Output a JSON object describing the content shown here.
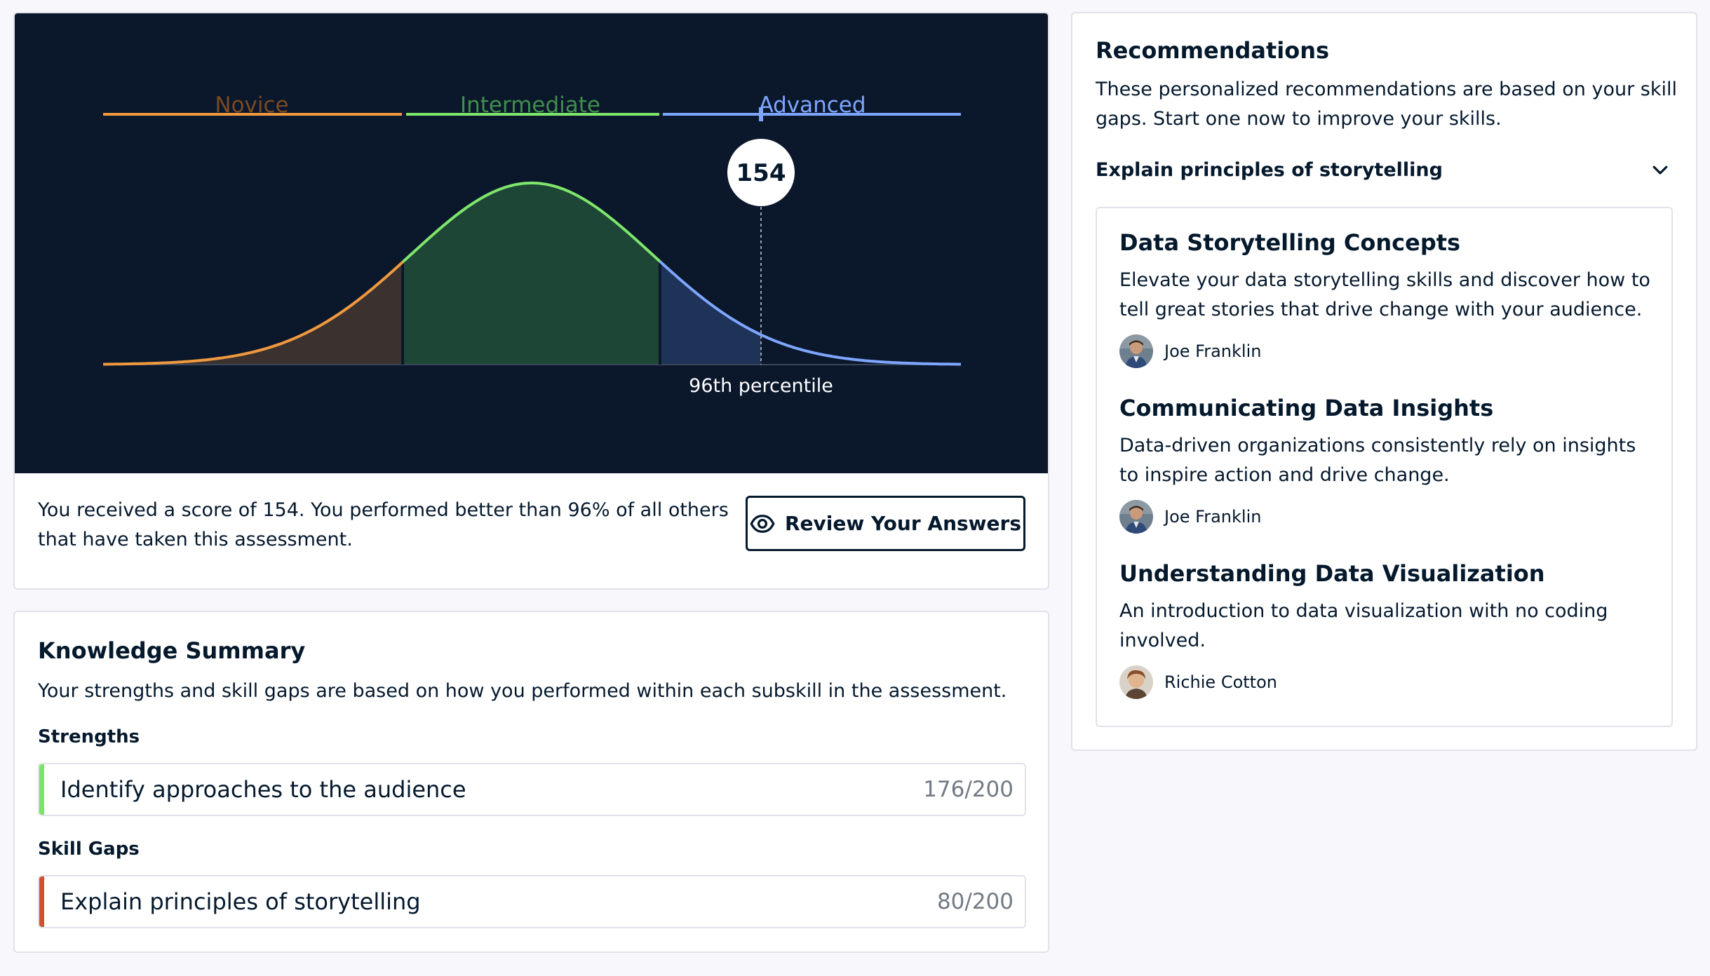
{
  "distribution": {
    "levels": [
      {
        "label": "Novice",
        "color": "#c97a31"
      },
      {
        "label": "Intermediate",
        "color": "#3f8f4d"
      },
      {
        "label": "Advanced",
        "color": "#7ea6ff"
      }
    ],
    "score": "154",
    "percentile_label": "96th percentile"
  },
  "score_summary": "You received a score of 154. You performed better than 96% of all others that have taken this assessment.",
  "review_button": {
    "label": "Review Your Answers",
    "icon": "eye-icon"
  },
  "knowledge": {
    "title": "Knowledge Summary",
    "description": "Your strengths and skill gaps are based on how you performed within each subskill in the assessment.",
    "strengths_label": "Strengths",
    "strengths": [
      {
        "name": "Identify approaches to the audience",
        "score": "176/200",
        "color": "#7fe16a"
      }
    ],
    "gaps_label": "Skill Gaps",
    "gaps": [
      {
        "name": "Explain principles of storytelling",
        "score": "80/200",
        "color": "#d0502f"
      }
    ]
  },
  "recommendations": {
    "title": "Recommendations",
    "description": "These personalized recommendations are based on your skill gaps. Start one now to improve your skills.",
    "selected_gap": "Explain principles of storytelling",
    "courses": [
      {
        "title": "Data Storytelling Concepts",
        "description": "Elevate your data storytelling skills and discover how to tell great stories that drive change with your audience.",
        "author": "Joe Franklin"
      },
      {
        "title": "Communicating Data Insights",
        "description": "Data-driven organizations consistently rely on insights to inspire action and drive change.",
        "author": "Joe Franklin"
      },
      {
        "title": "Understanding Data Visualization",
        "description": "An introduction to data visualization with no coding involved.",
        "author": "Richie Cotton"
      }
    ]
  }
}
